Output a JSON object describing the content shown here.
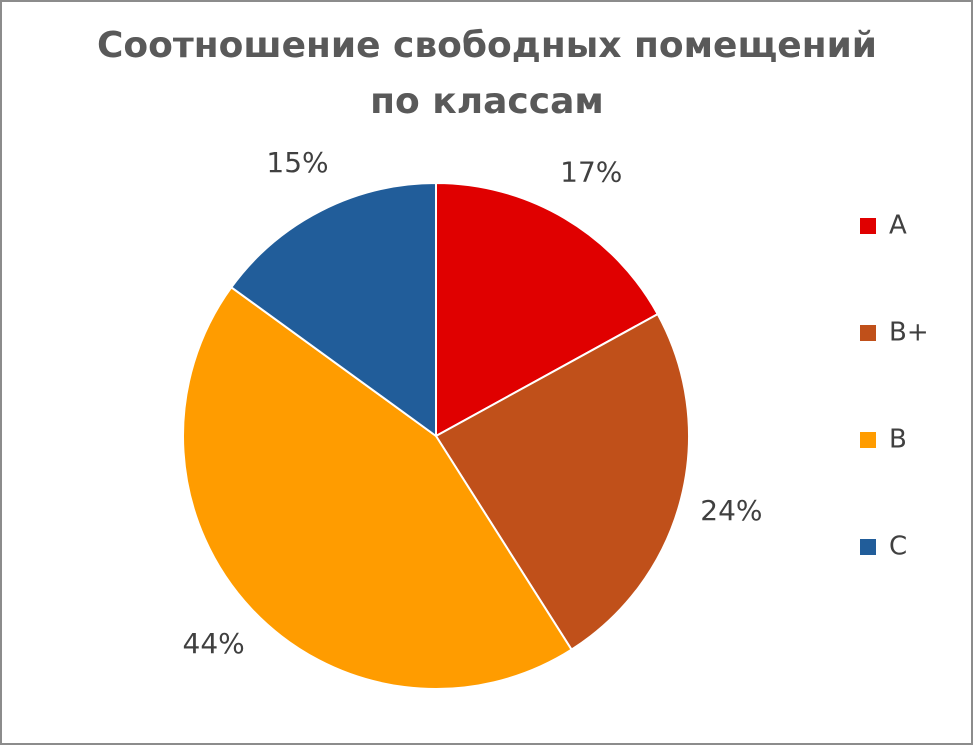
{
  "chart_data": {
    "type": "pie",
    "title": "Соотношение свободных помещений по классам",
    "categories": [
      "A",
      "B+",
      "B",
      "C"
    ],
    "values": [
      17,
      24,
      44,
      15
    ],
    "value_labels": [
      "17%",
      "24%",
      "44%",
      "15%"
    ],
    "colors": [
      "#e00000",
      "#c0501a",
      "#ff9c00",
      "#215d9a"
    ],
    "legend": "right"
  }
}
